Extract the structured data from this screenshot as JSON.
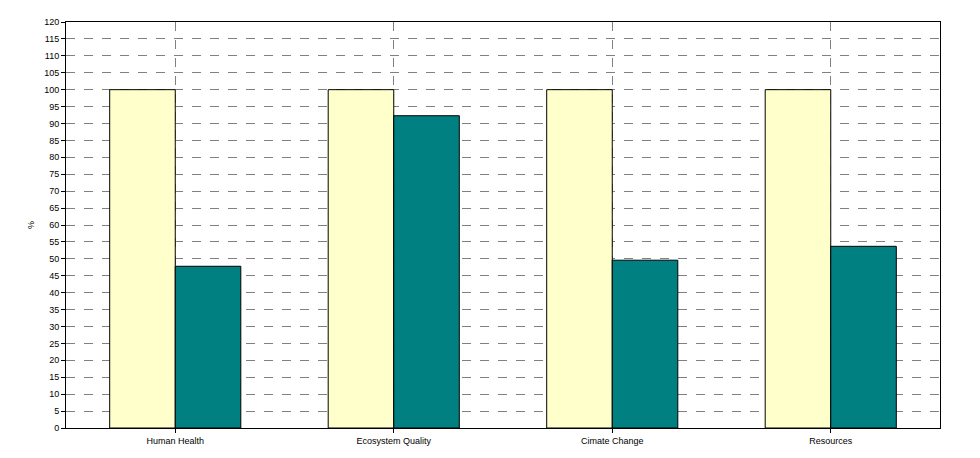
{
  "chart_data": {
    "type": "bar",
    "categories": [
      "Human Health",
      "Ecosystem Quality",
      "Cimate Change",
      "Resources"
    ],
    "series": [
      {
        "color": "#ffffcc",
        "values": [
          100,
          100,
          100,
          100
        ]
      },
      {
        "color": "#008080",
        "values": [
          47.8,
          92.3,
          49.6,
          53.7
        ]
      }
    ],
    "ylabel": "%",
    "ylim": [
      0,
      120
    ],
    "yticks": [
      0,
      5,
      10,
      15,
      20,
      25,
      30,
      35,
      40,
      45,
      50,
      55,
      60,
      65,
      70,
      75,
      80,
      85,
      90,
      95,
      100,
      105,
      110,
      115,
      120
    ],
    "grid": true
  }
}
